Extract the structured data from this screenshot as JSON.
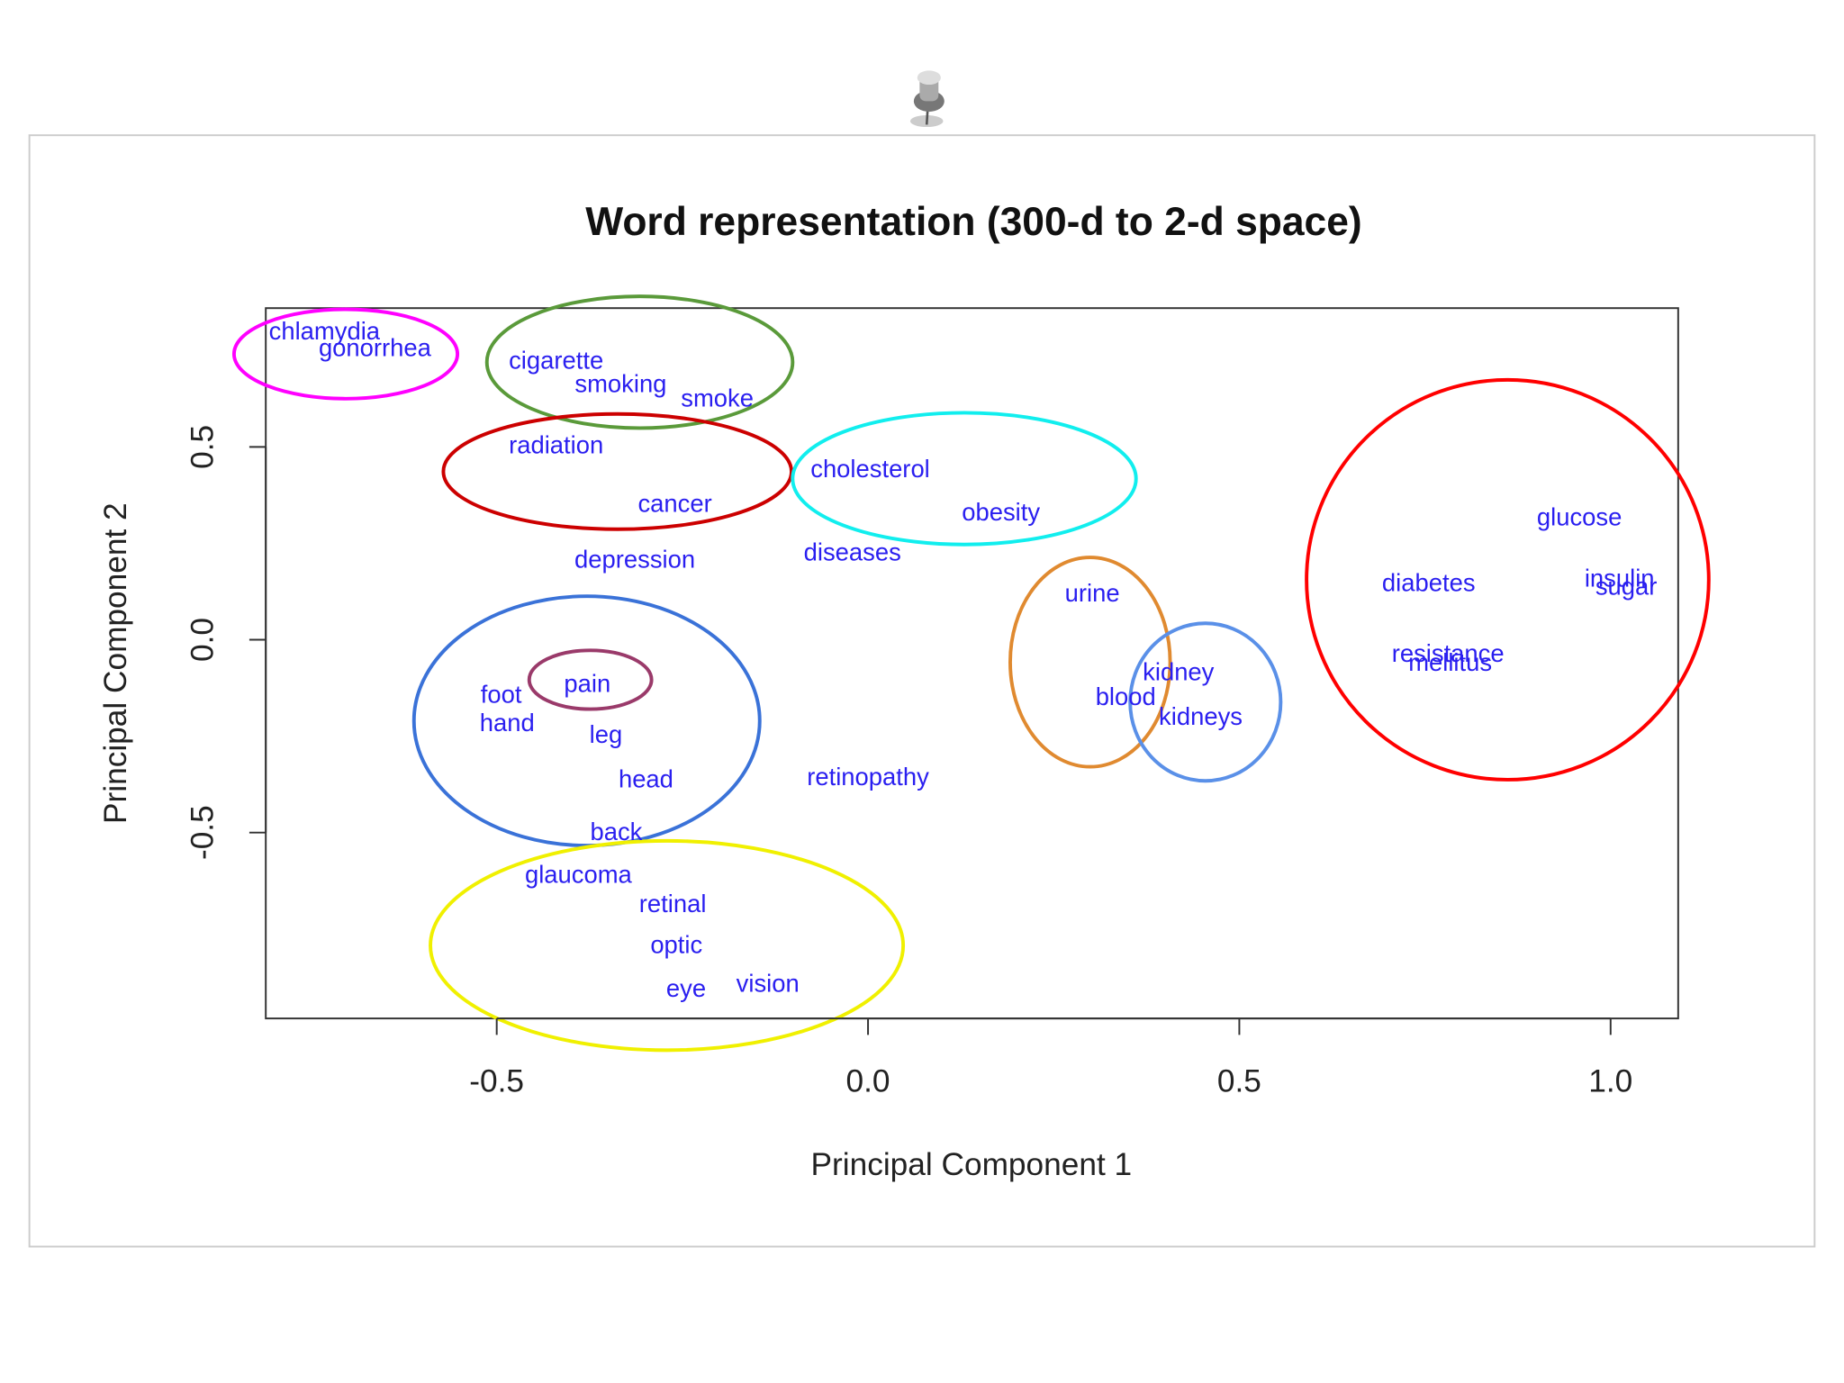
{
  "chart_data": {
    "type": "scatter",
    "title": "Word representation (300-d to 2-d space)",
    "xlabel": "Principal Component 1",
    "ylabel": "Principal Component 2",
    "color": "#2a1ff0",
    "labels": [
      "chlamydia",
      "gonorrhea",
      "cigarette",
      "smoking",
      "smoke",
      "radiation",
      "cancer",
      "cholesterol",
      "obesity",
      "depression",
      "diseases",
      "glucose",
      "diabetes",
      "insulin",
      "sugar",
      "resistance",
      "mellitus",
      "urine",
      "kidney",
      "blood",
      "kidneys",
      "pain",
      "foot",
      "hand",
      "leg",
      "head",
      "retinopathy",
      "back",
      "glaucoma",
      "retinal",
      "optic",
      "eye",
      "vision"
    ],
    "x": [
      -0.732,
      -0.664,
      -0.42,
      -0.333,
      -0.203,
      -0.42,
      -0.26,
      0.003,
      0.179,
      -0.314,
      -0.021,
      0.958,
      0.755,
      1.012,
      1.021,
      0.781,
      0.784,
      0.302,
      0.418,
      0.347,
      0.448,
      -0.378,
      -0.494,
      -0.486,
      -0.353,
      -0.299,
      0.0,
      -0.339,
      -0.39,
      -0.263,
      -0.258,
      -0.245,
      -0.135
    ],
    "y": [
      0.796,
      0.753,
      0.72,
      0.659,
      0.622,
      0.5,
      0.348,
      0.439,
      0.326,
      0.204,
      0.223,
      0.314,
      0.143,
      0.155,
      0.134,
      -0.04,
      -0.064,
      0.116,
      -0.088,
      -0.152,
      -0.204,
      -0.119,
      -0.146,
      -0.22,
      -0.25,
      -0.366,
      -0.36,
      -0.503,
      -0.613,
      -0.689,
      -0.796,
      -0.909,
      -0.896
    ],
    "xlim": [
      -0.811,
      1.091
    ],
    "ylim": [
      -0.982,
      0.86
    ],
    "xticks": [
      -0.5,
      {
        "value": 0,
        "label": "0.0"
      },
      0.5,
      {
        "value": 1,
        "label": "1.0"
      }
    ],
    "yticks": [
      -0.5,
      {
        "value": 0,
        "label": "0.0"
      },
      0.5
    ]
  }
}
